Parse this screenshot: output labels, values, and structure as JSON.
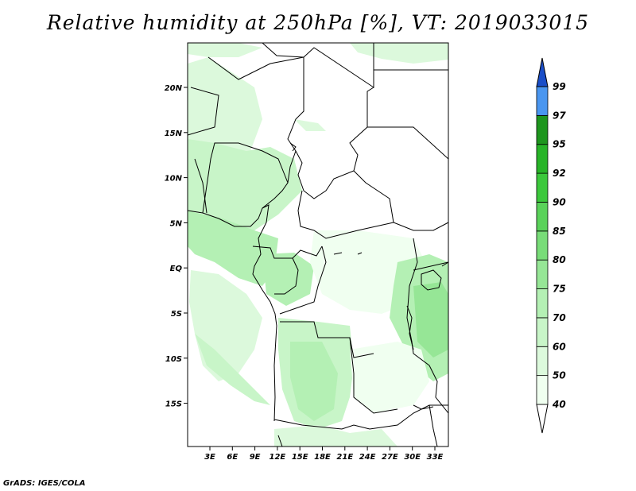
{
  "title": "Relative humidity at 250hPa [%], VT: 2019033015",
  "credit": "GrADS: IGES/COLA",
  "map": {
    "lon_labels": [
      "3E",
      "6E",
      "9E",
      "12E",
      "15E",
      "18E",
      "21E",
      "24E",
      "27E",
      "30E",
      "33E"
    ],
    "lat_labels": [
      "20N",
      "15N",
      "10N",
      "5N",
      "EQ",
      "5S",
      "10S",
      "15S"
    ]
  },
  "colorbar": {
    "labels": [
      "40",
      "50",
      "60",
      "70",
      "75",
      "80",
      "85",
      "90",
      "92",
      "95",
      "97",
      "99"
    ],
    "colors": [
      "#f0fff0",
      "#dcf9dc",
      "#c8f5c8",
      "#b4f0b4",
      "#96e696",
      "#78dc78",
      "#5ad25a",
      "#3cc83c",
      "#28b428",
      "#1e961e",
      "#4a96f0",
      "#2a6ed8",
      "#1a4ec8"
    ]
  }
}
